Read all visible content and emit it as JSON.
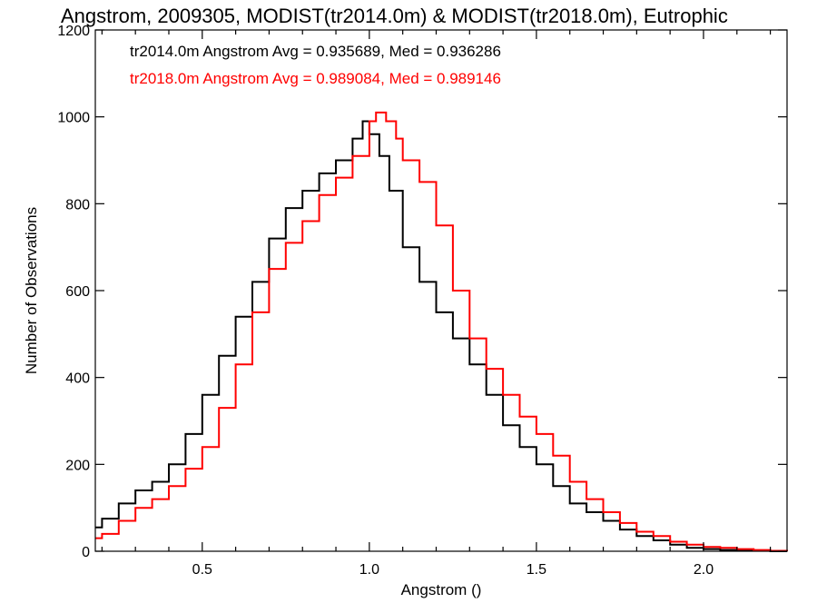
{
  "chart_data": {
    "type": "line",
    "title": "Angstrom, 2009305, MODIST(tr2014.0m) & MODIST(tr2018.0m), Eutrophic",
    "xlabel": "Angstrom ()",
    "ylabel": "Number of Observations",
    "xlim": [
      0.18,
      2.25
    ],
    "ylim": [
      0,
      1200
    ],
    "xticks": [
      0.5,
      1.0,
      1.5,
      2.0
    ],
    "xtick_labels": [
      "0.5",
      "1.0",
      "1.5",
      "2.0"
    ],
    "yticks": [
      0,
      200,
      400,
      600,
      800,
      1000,
      1200
    ],
    "ytick_labels": [
      "0",
      "200",
      "400",
      "600",
      "800",
      "1000",
      "1200"
    ],
    "grid": false,
    "legend": [
      {
        "text": "tr2014.0m Angstrom Avg = 0.935689, Med = 0.936286",
        "color": "#000000"
      },
      {
        "text": "tr2018.0m Angstrom Avg = 0.989084, Med = 0.989146",
        "color": "#ff0000"
      }
    ],
    "series": [
      {
        "color": "#000000",
        "style": "step",
        "x": [
          0.18,
          0.2,
          0.25,
          0.3,
          0.35,
          0.4,
          0.45,
          0.5,
          0.55,
          0.6,
          0.65,
          0.7,
          0.75,
          0.8,
          0.85,
          0.9,
          0.95,
          0.98,
          1.0,
          1.03,
          1.06,
          1.1,
          1.15,
          1.2,
          1.25,
          1.3,
          1.35,
          1.4,
          1.45,
          1.5,
          1.55,
          1.6,
          1.65,
          1.7,
          1.75,
          1.8,
          1.85,
          1.9,
          1.95,
          2.0,
          2.05,
          2.1,
          2.15,
          2.2,
          2.25
        ],
        "y": [
          55,
          75,
          110,
          140,
          160,
          200,
          270,
          360,
          450,
          540,
          620,
          720,
          790,
          830,
          870,
          900,
          950,
          990,
          960,
          910,
          830,
          700,
          620,
          550,
          490,
          430,
          360,
          290,
          240,
          200,
          150,
          110,
          90,
          70,
          50,
          35,
          25,
          15,
          8,
          5,
          3,
          2,
          1,
          0,
          0
        ]
      },
      {
        "color": "#ff0000",
        "style": "step",
        "x": [
          0.18,
          0.2,
          0.25,
          0.3,
          0.35,
          0.4,
          0.45,
          0.5,
          0.55,
          0.6,
          0.65,
          0.7,
          0.75,
          0.8,
          0.85,
          0.9,
          0.95,
          1.0,
          1.02,
          1.05,
          1.08,
          1.1,
          1.15,
          1.2,
          1.25,
          1.3,
          1.35,
          1.4,
          1.45,
          1.5,
          1.55,
          1.6,
          1.65,
          1.7,
          1.75,
          1.8,
          1.85,
          1.9,
          1.95,
          2.0,
          2.05,
          2.1,
          2.15,
          2.2,
          2.25
        ],
        "y": [
          30,
          40,
          70,
          100,
          120,
          150,
          190,
          240,
          330,
          430,
          550,
          650,
          710,
          760,
          820,
          860,
          910,
          990,
          1010,
          990,
          950,
          900,
          850,
          750,
          600,
          490,
          420,
          360,
          310,
          270,
          220,
          160,
          120,
          90,
          65,
          45,
          35,
          22,
          15,
          10,
          8,
          5,
          3,
          1,
          0
        ]
      }
    ]
  }
}
